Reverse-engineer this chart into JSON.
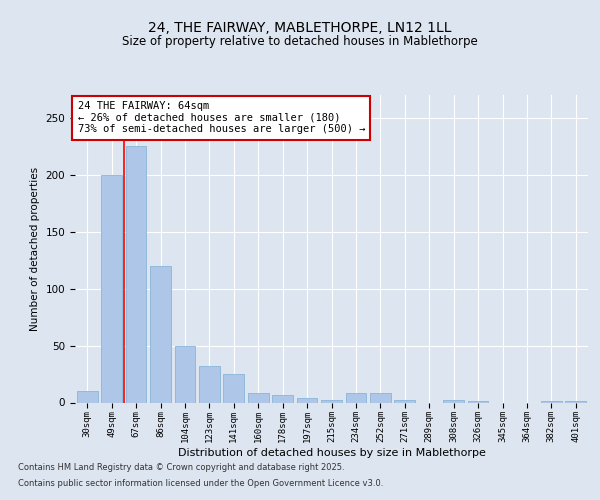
{
  "title1": "24, THE FAIRWAY, MABLETHORPE, LN12 1LL",
  "title2": "Size of property relative to detached houses in Mablethorpe",
  "xlabel": "Distribution of detached houses by size in Mablethorpe",
  "ylabel": "Number of detached properties",
  "categories": [
    "30sqm",
    "49sqm",
    "67sqm",
    "86sqm",
    "104sqm",
    "123sqm",
    "141sqm",
    "160sqm",
    "178sqm",
    "197sqm",
    "215sqm",
    "234sqm",
    "252sqm",
    "271sqm",
    "289sqm",
    "308sqm",
    "326sqm",
    "345sqm",
    "364sqm",
    "382sqm",
    "401sqm"
  ],
  "values": [
    10,
    200,
    225,
    120,
    50,
    32,
    25,
    8,
    7,
    4,
    2,
    8,
    8,
    2,
    0,
    2,
    1,
    0,
    0,
    1,
    1
  ],
  "bar_color": "#aec6e8",
  "bar_edge_color": "#8ab4d8",
  "red_line_index": 1.5,
  "annotation_text": "24 THE FAIRWAY: 64sqm\n← 26% of detached houses are smaller (180)\n73% of semi-detached houses are larger (500) →",
  "annotation_box_color": "#ffffff",
  "annotation_box_edge_color": "#cc0000",
  "footnote1": "Contains HM Land Registry data © Crown copyright and database right 2025.",
  "footnote2": "Contains public sector information licensed under the Open Government Licence v3.0.",
  "ylim": [
    0,
    270
  ],
  "background_color": "#dde5f0",
  "plot_bg_color": "#dde5f0",
  "grid_color": "#ffffff",
  "title_fontsize": 10,
  "subtitle_fontsize": 8.5
}
